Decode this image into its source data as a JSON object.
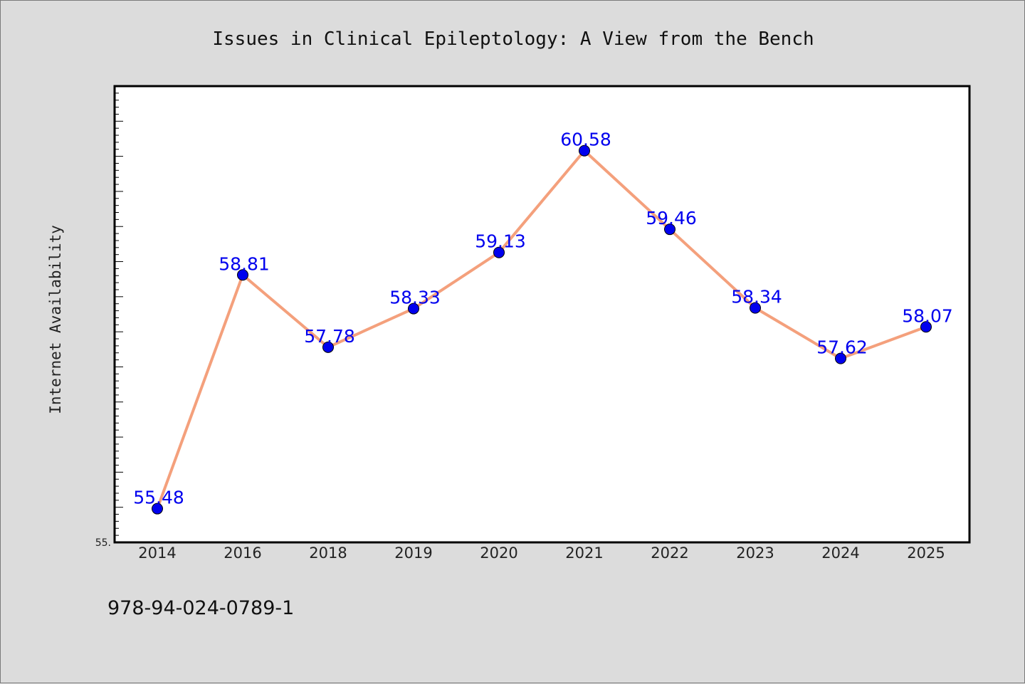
{
  "chart_data": {
    "type": "line",
    "title": "Issues in Clinical Epileptology: A View from the Bench",
    "xlabel": "",
    "ylabel": "Internet Availability",
    "categories": [
      "2014",
      "2016",
      "2018",
      "2019",
      "2020",
      "2021",
      "2022",
      "2023",
      "2024",
      "2025"
    ],
    "values": [
      55.48,
      58.81,
      57.78,
      58.33,
      59.13,
      60.58,
      59.46,
      58.34,
      57.62,
      58.07
    ],
    "data_labels": [
      "55.48",
      "58.81",
      "57.78",
      "58.33",
      "59.13",
      "60.58",
      "59.46",
      "58.34",
      "57.62",
      "58.07"
    ],
    "ylim": [
      55.0,
      61.5
    ],
    "y_tick_label": "55.",
    "grid": false,
    "legend": "none",
    "line_color": "#f4a07c",
    "marker_color": "#0000ee",
    "label_color": "#0000ee"
  },
  "footer": {
    "isbn": "978-94-024-0789-1"
  }
}
